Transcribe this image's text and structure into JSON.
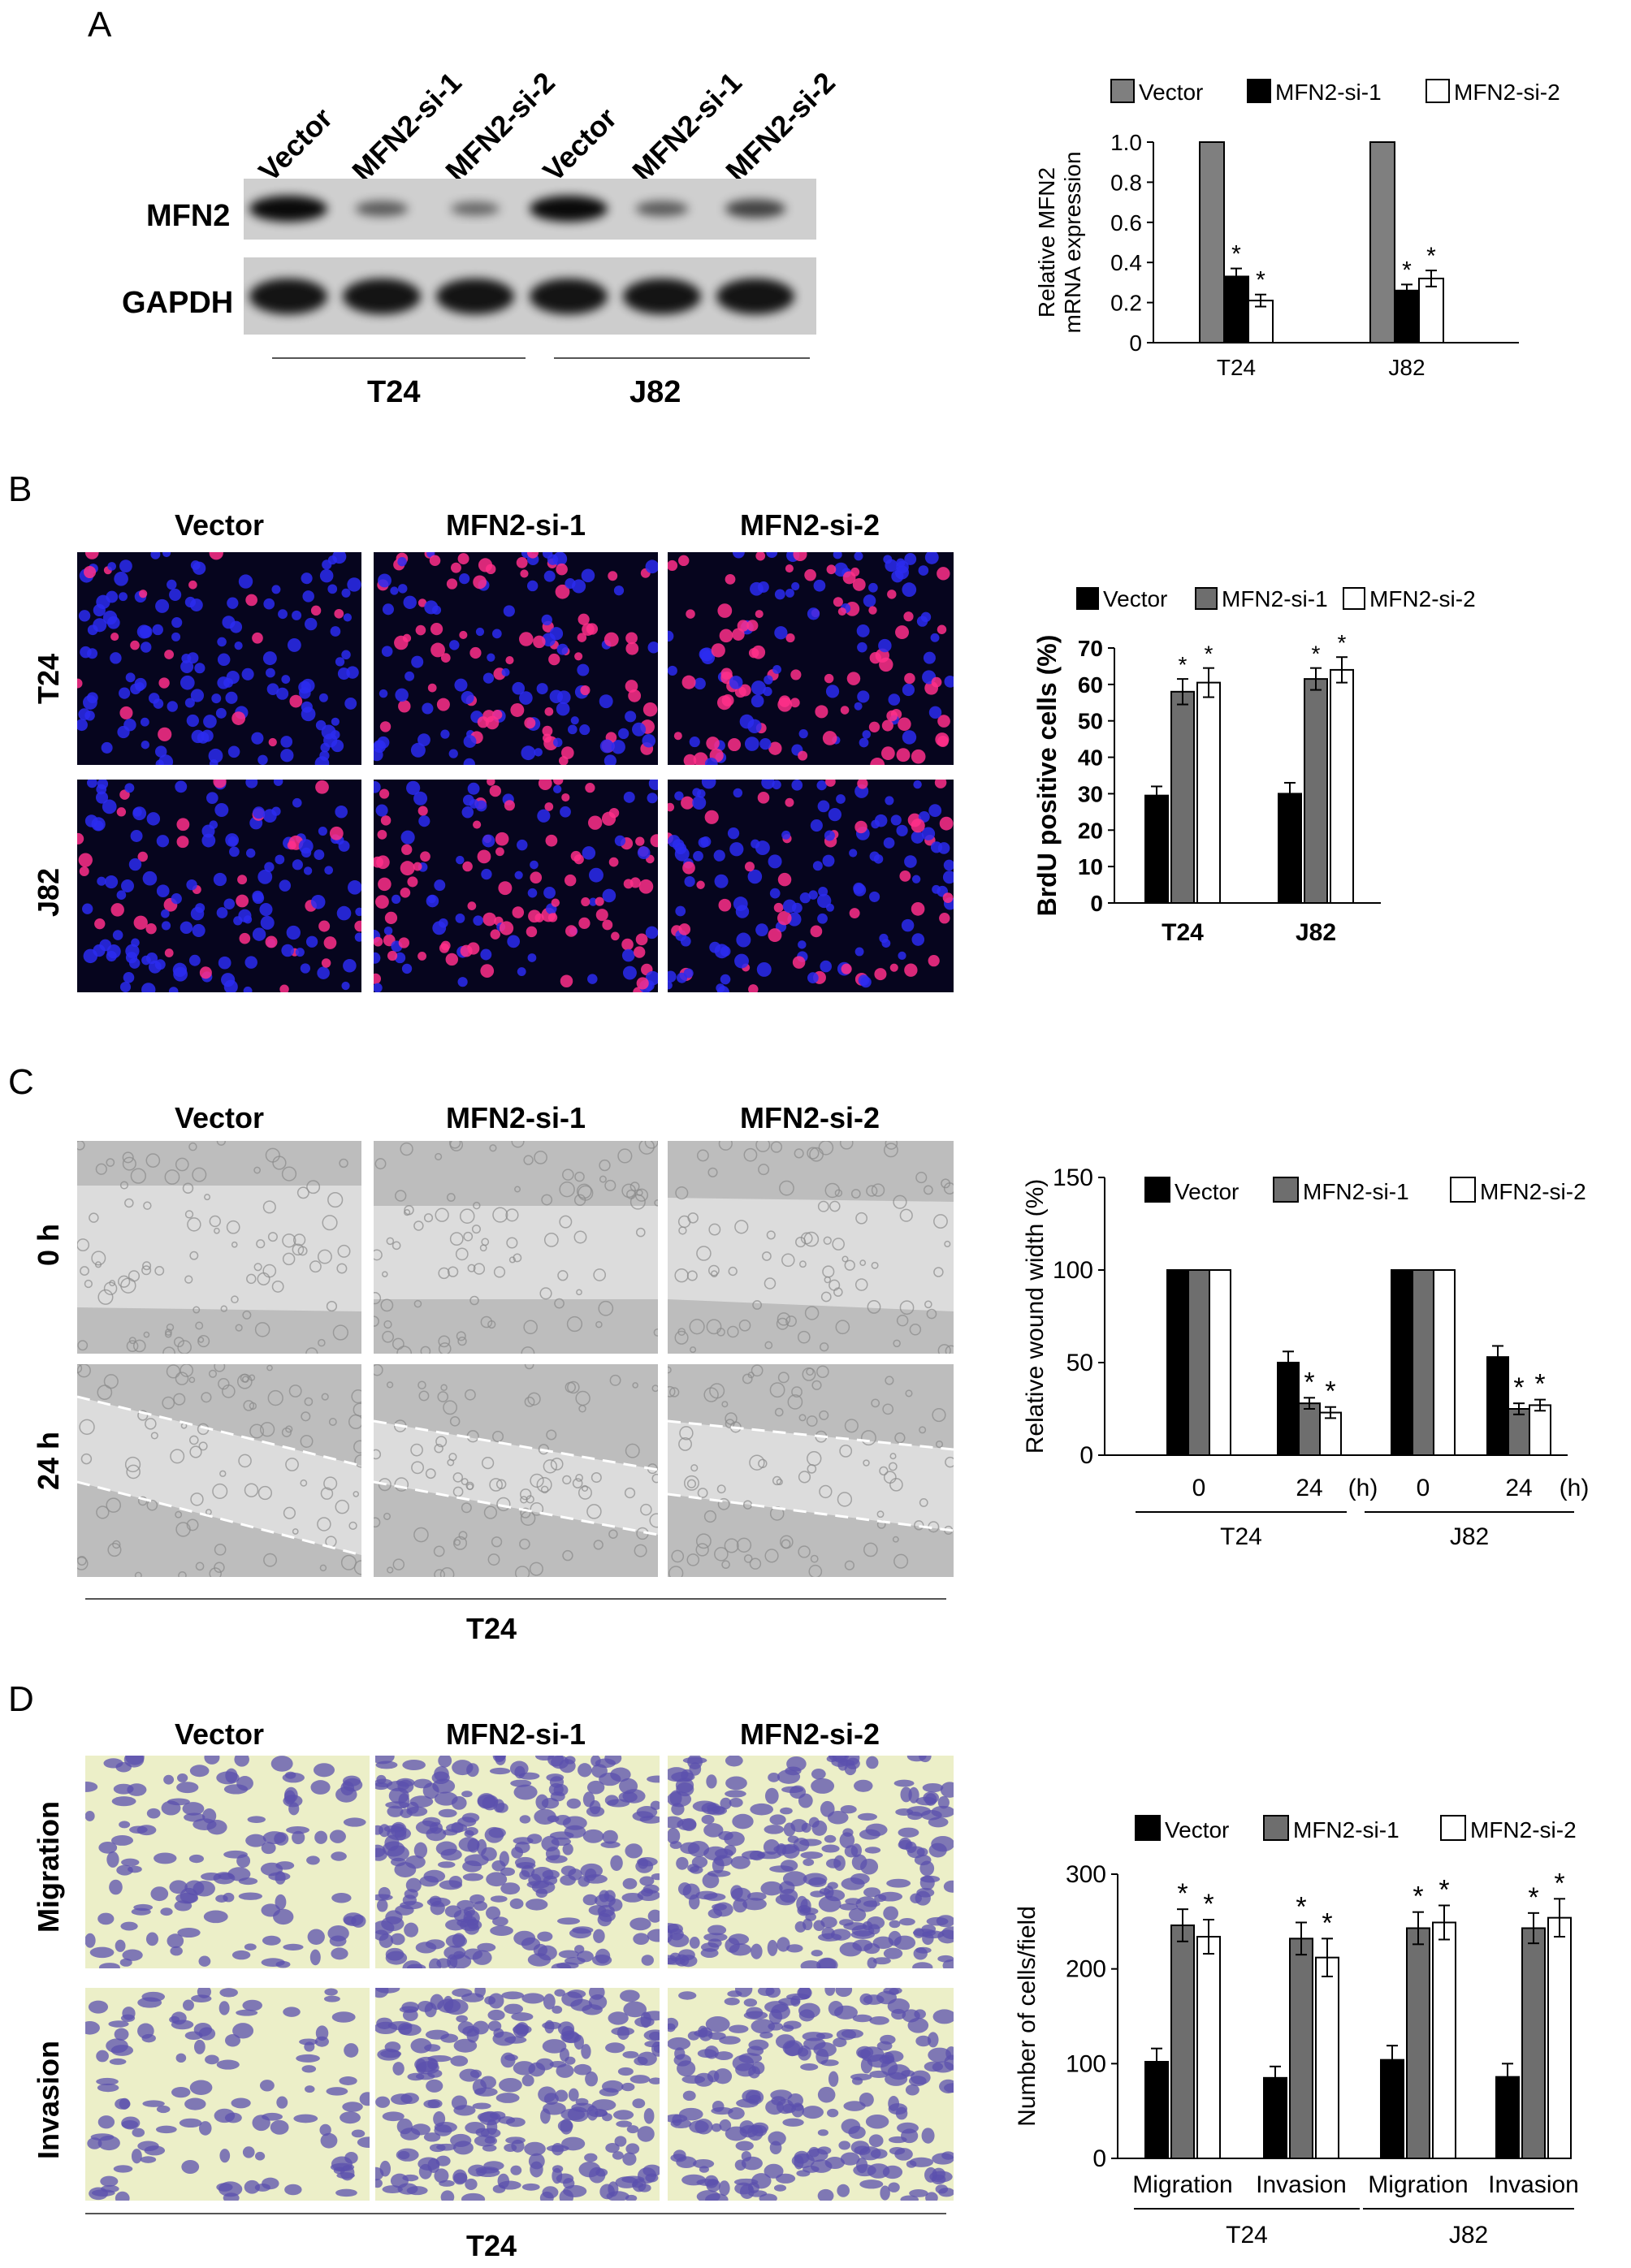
{
  "panelA": {
    "letter": "A",
    "lanes": [
      "Vector",
      "MFN2-si-1",
      "MFN2-si-2",
      "Vector",
      "MFN2-si-1",
      "MFN2-si-2"
    ],
    "rows": [
      "MFN2",
      "GAPDH"
    ],
    "mfn2_band_intensity": [
      1.0,
      0.35,
      0.25,
      1.0,
      0.35,
      0.55
    ],
    "gapdh_band_intensity": [
      1.0,
      1.0,
      1.0,
      1.0,
      1.0,
      1.0
    ],
    "groups": [
      "T24",
      "J82"
    ]
  },
  "panelB": {
    "letter": "B",
    "columns": [
      "Vector",
      "MFN2-si-1",
      "MFN2-si-2"
    ],
    "rows": [
      "T24",
      "J82"
    ]
  },
  "panelC": {
    "letter": "C",
    "columns": [
      "Vector",
      "MFN2-si-1",
      "MFN2-si-2"
    ],
    "rows": [
      "0 h",
      "24 h"
    ],
    "footer": "T24"
  },
  "panelD": {
    "letter": "D",
    "columns": [
      "Vector",
      "MFN2-si-1",
      "MFN2-si-2"
    ],
    "rows": [
      "Migration",
      "Invasion"
    ],
    "footer": "T24"
  },
  "colors": {
    "vector_A": "#7f7f7f",
    "dark_grey": "#6e6e6e",
    "black": "#000000",
    "white": "#ffffff",
    "red_nucleus": "#ff2a6a",
    "blue_nucleus": "#2a2aff",
    "stain": "#5a4fa8"
  },
  "chart_data": [
    {
      "type": "bar",
      "categories": [
        "T24",
        "J82"
      ],
      "series": [
        {
          "name": "Vector",
          "values": [
            1.0,
            1.0
          ],
          "errors": [
            0,
            0
          ],
          "stars": [
            false,
            false
          ],
          "fill": "#7f7f7f"
        },
        {
          "name": "MFN2-si-1",
          "values": [
            0.33,
            0.26
          ],
          "errors": [
            0.04,
            0.03
          ],
          "stars": [
            true,
            true
          ],
          "fill": "#000000"
        },
        {
          "name": "MFN2-si-2",
          "values": [
            0.21,
            0.32
          ],
          "errors": [
            0.03,
            0.04
          ],
          "stars": [
            true,
            true
          ],
          "fill": "#ffffff"
        }
      ],
      "ylabel": [
        "Relative MFN2",
        "mRNA expression"
      ],
      "ylim": [
        0,
        1.0
      ],
      "yticks": [
        "0",
        "0.2",
        "0.4",
        "0.6",
        "0.8",
        "1.0"
      ],
      "legend": "top"
    },
    {
      "type": "bar",
      "categories": [
        "T24",
        "J82"
      ],
      "series": [
        {
          "name": "Vector",
          "values": [
            29.5,
            30
          ],
          "errors": [
            2.5,
            3
          ],
          "stars": [
            false,
            false
          ],
          "fill": "#000000"
        },
        {
          "name": "MFN2-si-1",
          "values": [
            58,
            61.5
          ],
          "errors": [
            3.5,
            3
          ],
          "stars": [
            true,
            true
          ],
          "fill": "#6e6e6e"
        },
        {
          "name": "MFN2-si-2",
          "values": [
            60.5,
            64
          ],
          "errors": [
            4,
            3.5
          ],
          "stars": [
            true,
            true
          ],
          "fill": "#ffffff"
        }
      ],
      "ylabel": "BrdU positive cells (%)",
      "ylim": [
        0,
        70
      ],
      "yticks": [
        "0",
        "10",
        "20",
        "30",
        "40",
        "50",
        "60",
        "70"
      ],
      "legend": "top"
    },
    {
      "type": "bar",
      "categories": [
        "0",
        "24",
        "0",
        "24"
      ],
      "unit_label": "(h)",
      "groups": [
        "T24",
        "J82"
      ],
      "series": [
        {
          "name": "Vector",
          "values": [
            100,
            50,
            100,
            53
          ],
          "errors": [
            0,
            6,
            0,
            6
          ],
          "stars": [
            false,
            false,
            false,
            false
          ],
          "fill": "#000000"
        },
        {
          "name": "MFN2-si-1",
          "values": [
            100,
            28,
            100,
            25
          ],
          "errors": [
            0,
            3,
            0,
            3
          ],
          "stars": [
            false,
            true,
            false,
            true
          ],
          "fill": "#6e6e6e"
        },
        {
          "name": "MFN2-si-2",
          "values": [
            100,
            23,
            100,
            27
          ],
          "errors": [
            0,
            3,
            0,
            3
          ],
          "stars": [
            false,
            true,
            false,
            true
          ],
          "fill": "#ffffff"
        }
      ],
      "ylabel": "Relative wound width (%)",
      "ylim": [
        0,
        150
      ],
      "yticks": [
        "0",
        "50",
        "100",
        "150"
      ],
      "legend": "top"
    },
    {
      "type": "bar",
      "categories": [
        "Migration",
        "Invasion",
        "Migration",
        "Invasion"
      ],
      "groups": [
        "T24",
        "J82"
      ],
      "series": [
        {
          "name": "Vector",
          "values": [
            102,
            85,
            104,
            86
          ],
          "errors": [
            14,
            12,
            15,
            14
          ],
          "stars": [
            false,
            false,
            false,
            false
          ],
          "fill": "#000000"
        },
        {
          "name": "MFN2-si-1",
          "values": [
            246,
            232,
            243,
            243
          ],
          "errors": [
            17,
            17,
            17,
            16
          ],
          "stars": [
            true,
            true,
            true,
            true
          ],
          "fill": "#6e6e6e"
        },
        {
          "name": "MFN2-si-2",
          "values": [
            234,
            212,
            249,
            254
          ],
          "errors": [
            18,
            20,
            18,
            20
          ],
          "stars": [
            true,
            true,
            true,
            true
          ],
          "fill": "#ffffff"
        }
      ],
      "ylabel": "Number of cells/field",
      "ylim": [
        0,
        300
      ],
      "yticks": [
        "0",
        "100",
        "200",
        "300"
      ],
      "legend": "top"
    }
  ]
}
